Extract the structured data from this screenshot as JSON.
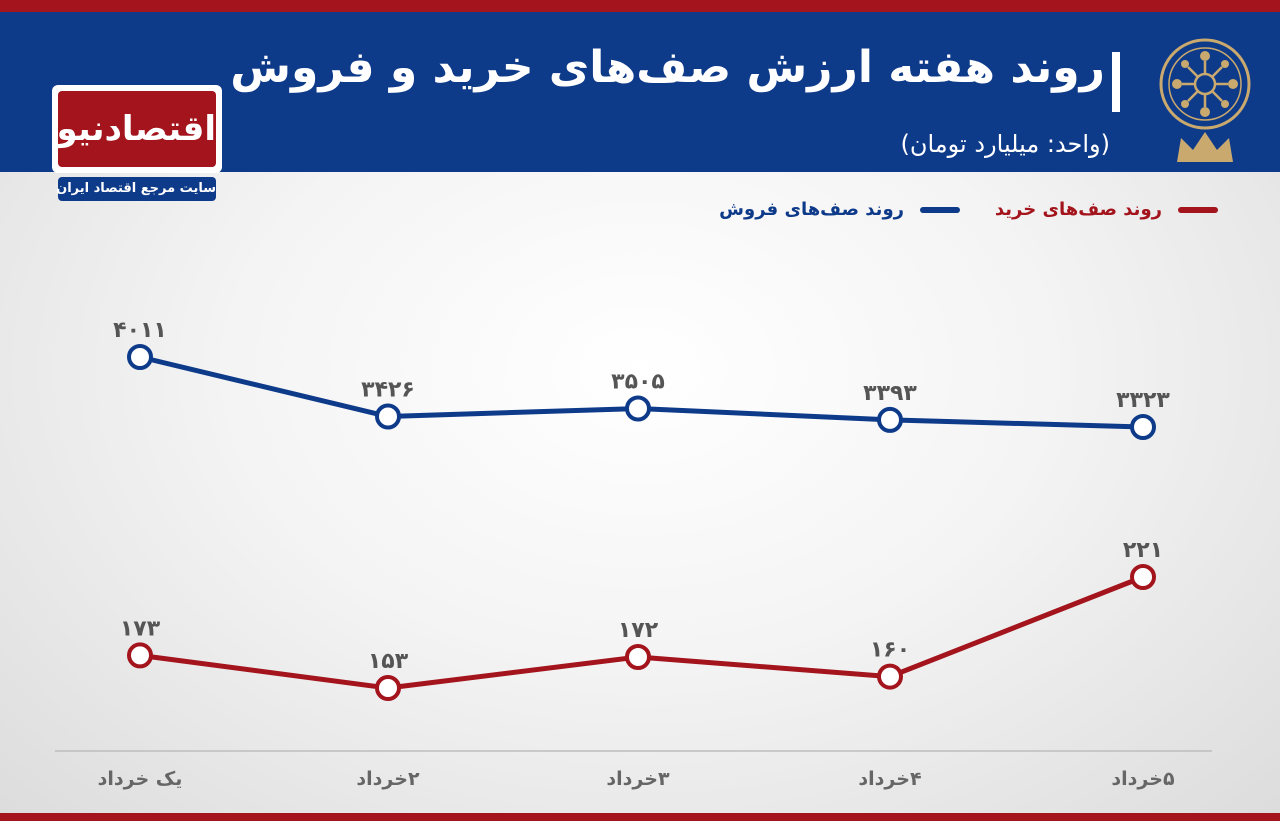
{
  "header": {
    "title": "روند هفته ارزش صف‌های خرید و فروش",
    "subtitle": "(واحد: میلیارد تومان)"
  },
  "logo": {
    "name": "اقتصادنیوز",
    "tagline": "سایت مرجع اقتصاد ایران"
  },
  "colors": {
    "header_bg": "#0e3a8a",
    "accent_red": "#a3141c",
    "buy_line": "#a3141c",
    "sell_line": "#0e3a8a",
    "axis_labels": "#666666"
  },
  "chart_data": {
    "type": "line",
    "title": "روند هفته ارزش صف‌های خرید و فروش",
    "unit": "(واحد: میلیارد تومان)",
    "categories": [
      "یک خرداد",
      "۲خرداد",
      "۳خرداد",
      "۴خرداد",
      "۵خرداد"
    ],
    "series": [
      {
        "name": "روند صف‌های فروش",
        "color": "#0e3a8a",
        "values": [
          4011,
          3426,
          3505,
          3393,
          3323
        ],
        "labels": [
          "۴۰۱۱",
          "۳۴۲۶",
          "۳۵۰۵",
          "۳۳۹۳",
          "۳۳۲۳"
        ]
      },
      {
        "name": "روند صف‌های خرید",
        "color": "#a3141c",
        "values": [
          173,
          153,
          172,
          160,
          221
        ],
        "labels": [
          "۱۷۳",
          "۱۵۳",
          "۱۷۲",
          "۱۶۰",
          "۲۲۱"
        ]
      }
    ],
    "legend_position": "top-right",
    "grid": false
  }
}
